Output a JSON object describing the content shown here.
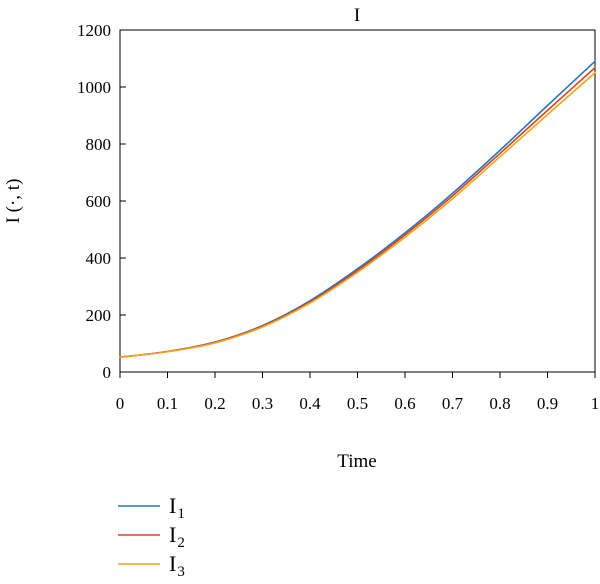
{
  "chart_data": {
    "type": "line",
    "title": "I",
    "xlabel": "Time",
    "ylabel": "I (·, t)",
    "xlim": [
      0,
      1
    ],
    "ylim": [
      0,
      1200
    ],
    "xticks": [
      0,
      0.1,
      0.2,
      0.3,
      0.4,
      0.5,
      0.6,
      0.7,
      0.8,
      0.9,
      1
    ],
    "xtick_labels": [
      "0",
      "0.1",
      "0.2",
      "0.3",
      "0.4",
      "0.5",
      "0.6",
      "0.7",
      "0.8",
      "0.9",
      "1"
    ],
    "yticks": [
      0,
      200,
      400,
      600,
      800,
      1000,
      1200
    ],
    "ytick_labels": [
      "0",
      "200",
      "400",
      "600",
      "800",
      "1000",
      "1200"
    ],
    "grid": false,
    "legend_position": "below-left",
    "x": [
      0,
      0.1,
      0.2,
      0.3,
      0.4,
      0.5,
      0.6,
      0.7,
      0.8,
      0.9,
      1
    ],
    "series": [
      {
        "name": "I",
        "subscript": "1",
        "color": "#2a73c4",
        "values": [
          52,
          72,
          105,
          163,
          250,
          362,
          488,
          627,
          778,
          935,
          1090
        ]
      },
      {
        "name": "I",
        "subscript": "2",
        "color": "#d8451b",
        "values": [
          52,
          72,
          104,
          161,
          246,
          356,
          481,
          618,
          767,
          918,
          1068
        ]
      },
      {
        "name": "I",
        "subscript": "3",
        "color": "#f2a51a",
        "values": [
          52,
          71,
          102,
          158,
          242,
          350,
          473,
          608,
          755,
          903,
          1050
        ]
      }
    ]
  }
}
